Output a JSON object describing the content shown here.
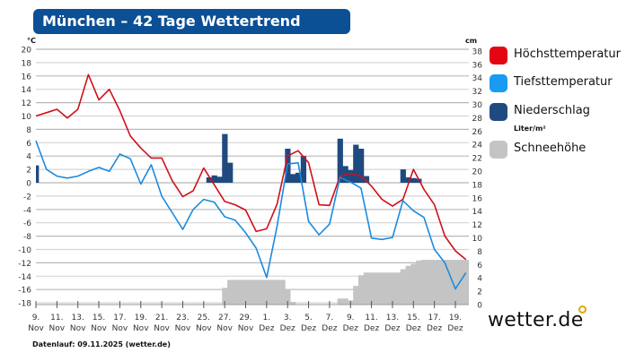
{
  "header": {
    "title": "München – 42 Tage Wettertrend"
  },
  "footer": {
    "text": "Datenlauf: 09.11.2025 (wetter.de)"
  },
  "logo": {
    "text": "wetter.de"
  },
  "legend": [
    {
      "label": "Höchsttemperatur",
      "color": "#e30613"
    },
    {
      "label": "Tiefsttemperatur",
      "color": "#1a9af0"
    },
    {
      "label": "Niederschlag",
      "unit": "Liter/m²",
      "color": "#1f4a80"
    },
    {
      "label": "Schneehöhe",
      "color": "#c4c4c4"
    }
  ],
  "chart_data": {
    "type": "line",
    "left_axis": {
      "unit": "°C",
      "ylim": [
        -18,
        20
      ],
      "ticks": [
        "20",
        "18",
        "16",
        "14",
        "12",
        "10",
        "8",
        "6",
        "4",
        "2",
        "0",
        "-2",
        "-4",
        "-6",
        "-8",
        "-10",
        "-12",
        "-14",
        "-16",
        "-18"
      ]
    },
    "right_axis": {
      "unit": "cm",
      "ylim": [
        0,
        38
      ],
      "ticks": [
        "38",
        "36",
        "34",
        "32",
        "30",
        "28",
        "26",
        "24",
        "22",
        "20",
        "18",
        "16",
        "14",
        "12",
        "10",
        "8",
        "6",
        "4",
        "2",
        "0"
      ]
    },
    "x_ticks": [
      [
        "9.",
        "Nov"
      ],
      [
        "11.",
        "Nov"
      ],
      [
        "13.",
        "Nov"
      ],
      [
        "15.",
        "Nov"
      ],
      [
        "17.",
        "Nov"
      ],
      [
        "19.",
        "Nov"
      ],
      [
        "21.",
        "Nov"
      ],
      [
        "23.",
        "Nov"
      ],
      [
        "25.",
        "Nov"
      ],
      [
        "27.",
        "Nov"
      ],
      [
        "29.",
        "Nov"
      ],
      [
        "1.",
        "Dez"
      ],
      [
        "3.",
        "Dez"
      ],
      [
        "5.",
        "Dez"
      ],
      [
        "7.",
        "Dez"
      ],
      [
        "9.",
        "Dez"
      ],
      [
        "11.",
        "Dez"
      ],
      [
        "13.",
        "Dez"
      ],
      [
        "15.",
        "Dez"
      ],
      [
        "17.",
        "Dez"
      ],
      [
        "19.",
        "Dez"
      ]
    ],
    "grid": true,
    "legend_position": "right",
    "series": [
      {
        "name": "Höchsttemperatur",
        "color": "#d0101a",
        "values": [
          10,
          10.5,
          11,
          9.7,
          11,
          16.2,
          12.4,
          14,
          10.8,
          7,
          5.2,
          3.7,
          3.7,
          0.3,
          -2.1,
          -1.2,
          2.2,
          -0.3,
          -2.8,
          -3.3,
          -4.1,
          -7.3,
          -6.9,
          -3.2,
          4,
          4.8,
          3,
          -3.3,
          -3.4,
          1,
          1.4,
          1,
          -0.5,
          -2.5,
          -3.5,
          -2.5,
          2,
          -1,
          -3.3,
          -8,
          -10.2,
          -11.5
        ]
      },
      {
        "name": "Tiefsttemperatur",
        "color": "#1a8be0",
        "values": [
          6.3,
          2,
          1,
          0.7,
          1,
          1.7,
          2.3,
          1.7,
          4.3,
          3.6,
          -0.2,
          2.7,
          -2,
          -4.5,
          -7,
          -4,
          -2.5,
          -2.9,
          -5.1,
          -5.6,
          -7.5,
          -9.8,
          -14.2,
          -6.5,
          2.8,
          3,
          -5.8,
          -7.8,
          -6.2,
          0.8,
          0.1,
          -0.8,
          -8.3,
          -8.5,
          -8.2,
          -2.7,
          -4.2,
          -5.2,
          -10,
          -12,
          -15.9,
          -13.5
        ]
      },
      {
        "name": "Niederschlag",
        "unit": "Liter/m²",
        "color": "#1f4a80",
        "resolution": "half-day",
        "values": [
          2.6,
          0,
          0,
          0,
          0,
          0,
          0,
          0,
          0,
          0,
          0,
          0,
          0,
          0,
          0,
          0,
          0,
          0,
          0,
          0,
          0,
          0,
          0,
          0,
          0,
          0,
          0,
          0,
          0,
          0,
          0,
          0,
          0,
          0.8,
          1.1,
          0.9,
          7.3,
          3.0,
          0,
          0,
          0,
          0,
          0,
          0,
          0,
          0,
          0,
          0,
          5.1,
          1.3,
          1.5,
          4.0,
          0,
          0,
          0,
          0,
          0,
          0,
          6.6,
          2.5,
          1.9,
          5.7,
          5.1,
          1.0,
          0,
          0,
          0,
          0,
          0,
          0,
          2.0,
          0.8,
          0.7,
          0.6,
          0,
          0,
          0,
          0,
          0,
          0,
          0,
          0,
          0,
          0
        ]
      },
      {
        "name": "Schneehöhe",
        "unit": "cm",
        "color": "#c4c4c4",
        "resolution": "half-day",
        "values": [
          0,
          0,
          0,
          0,
          0,
          0,
          0,
          0,
          0,
          0,
          0,
          0,
          0,
          0,
          0,
          0,
          0,
          0,
          0,
          0,
          0,
          0,
          0,
          0,
          0,
          0,
          0,
          0,
          0,
          0,
          0,
          0,
          0,
          0,
          0,
          0,
          2.5,
          3.7,
          3.7,
          3.7,
          3.7,
          3.7,
          3.7,
          3.7,
          3.7,
          3.7,
          3.7,
          3.7,
          2.3,
          0.4,
          0,
          0,
          0,
          0,
          0,
          0,
          0,
          0,
          0.9,
          0.9,
          0.6,
          2.8,
          4.4,
          4.8,
          4.8,
          4.8,
          4.8,
          4.8,
          4.8,
          4.8,
          5.3,
          5.8,
          6.1,
          6.6,
          6.7,
          6.7,
          6.7,
          6.7,
          6.7,
          6.7,
          6.7,
          6.7,
          6.7,
          6.7
        ]
      }
    ]
  }
}
